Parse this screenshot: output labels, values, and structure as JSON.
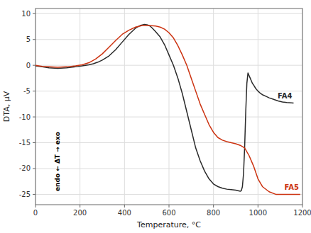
{
  "chart_data": {
    "type": "line",
    "xlabel": "Temperature, °C",
    "ylabel": "DTA, μV",
    "annotation": "endo ← ΔT → exo",
    "xlim": [
      0,
      1200
    ],
    "ylim": [
      -27,
      11
    ],
    "xticks": [
      0,
      200,
      400,
      600,
      800,
      1000,
      1200
    ],
    "yticks": [
      -25,
      -20,
      -15,
      -10,
      -5,
      0,
      5,
      10
    ],
    "grid": true,
    "series": [
      {
        "name": "FA4",
        "color": "#2a2a2a",
        "x": [
          0,
          30,
          60,
          100,
          140,
          180,
          210,
          240,
          260,
          280,
          300,
          330,
          360,
          390,
          420,
          450,
          470,
          490,
          505,
          515,
          525,
          540,
          560,
          580,
          600,
          620,
          640,
          660,
          680,
          700,
          720,
          740,
          760,
          780,
          800,
          820,
          840,
          860,
          880,
          900,
          910,
          920,
          925,
          930,
          935,
          940,
          945,
          950,
          955,
          960,
          965,
          970,
          975,
          980,
          990,
          1000,
          1010,
          1020,
          1035,
          1050,
          1070,
          1090,
          1110,
          1130,
          1160
        ],
        "values": [
          -0.1,
          -0.3,
          -0.5,
          -0.6,
          -0.5,
          -0.3,
          -0.1,
          0.1,
          0.3,
          0.6,
          1.0,
          1.8,
          3.0,
          4.5,
          6.0,
          7.2,
          7.7,
          7.9,
          7.8,
          7.6,
          7.2,
          6.5,
          5.5,
          4.0,
          2.0,
          0.0,
          -2.5,
          -5.5,
          -9.0,
          -12.5,
          -16.0,
          -18.5,
          -20.5,
          -22.0,
          -23.0,
          -23.5,
          -23.8,
          -24.0,
          -24.1,
          -24.2,
          -24.3,
          -24.4,
          -24.3,
          -23.5,
          -21.0,
          -16.0,
          -9.0,
          -3.5,
          -1.5,
          -2.0,
          -2.5,
          -3.0,
          -3.5,
          -3.8,
          -4.5,
          -5.0,
          -5.4,
          -5.7,
          -6.0,
          -6.3,
          -6.6,
          -6.9,
          -7.1,
          -7.2,
          -7.3
        ]
      },
      {
        "name": "FA5",
        "color": "#cc3311",
        "x": [
          0,
          30,
          60,
          100,
          140,
          180,
          210,
          240,
          270,
          300,
          330,
          360,
          390,
          420,
          450,
          480,
          510,
          540,
          560,
          580,
          600,
          620,
          640,
          660,
          680,
          700,
          720,
          740,
          760,
          780,
          800,
          820,
          840,
          860,
          880,
          900,
          920,
          940,
          960,
          980,
          1000,
          1020,
          1050,
          1080,
          1110,
          1140,
          1170,
          1190
        ],
        "values": [
          0.0,
          -0.2,
          -0.3,
          -0.4,
          -0.3,
          -0.1,
          0.1,
          0.5,
          1.2,
          2.2,
          3.5,
          4.8,
          6.0,
          6.8,
          7.4,
          7.7,
          7.7,
          7.6,
          7.4,
          7.0,
          6.3,
          5.3,
          3.8,
          2.0,
          0.0,
          -2.5,
          -5.0,
          -7.5,
          -9.5,
          -11.5,
          -13.0,
          -14.0,
          -14.5,
          -14.8,
          -15.0,
          -15.2,
          -15.5,
          -16.0,
          -17.5,
          -19.5,
          -22.0,
          -23.5,
          -24.5,
          -25.0,
          -25.0,
          -25.0,
          -25.0,
          -25.0
        ]
      }
    ]
  }
}
